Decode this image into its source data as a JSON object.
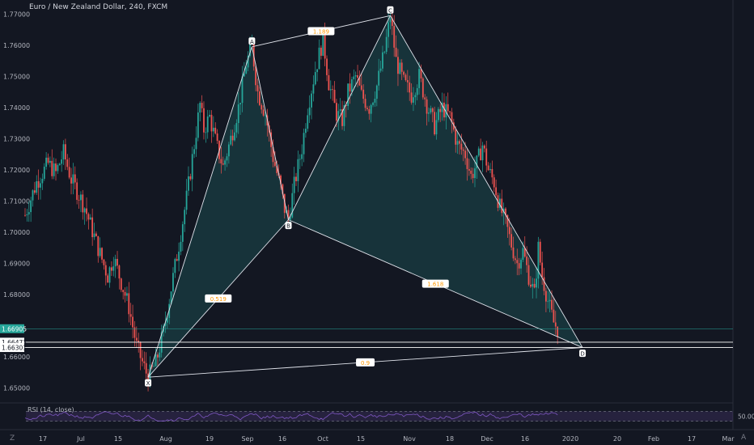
{
  "header": {
    "title": "Euro / New Zealand Dollar, 240, FXCM"
  },
  "chart_data": {
    "type": "candlestick",
    "symbol": "Euro / New Zealand Dollar",
    "interval": "240",
    "source": "FXCM",
    "y_ticks": [
      "1.77000",
      "1.76000",
      "1.75000",
      "1.74000",
      "1.73000",
      "1.72000",
      "1.71000",
      "1.70000",
      "1.69000",
      "1.68000",
      "1.66000",
      "1.65000"
    ],
    "ylim": [
      1.6455,
      1.7745
    ],
    "x_ticks": [
      "17",
      "Jul",
      "15",
      "Aug",
      "19",
      "Sep",
      "16",
      "Oct",
      "15",
      "Nov",
      "18",
      "Dec",
      "16",
      "2020",
      "20",
      "Feb",
      "17",
      "Mar"
    ],
    "price_markers": [
      {
        "label": "1.66905",
        "value": 1.66905,
        "color": "#26a69a"
      },
      {
        "label": "1.66473",
        "value": 1.66473,
        "color": "#ffffff"
      },
      {
        "label": "1.66301",
        "value": 1.66301,
        "color": "#ffffff"
      }
    ],
    "close_path": [
      [
        0,
        1.7055
      ],
      [
        6,
        1.716
      ],
      [
        12,
        1.722
      ],
      [
        16,
        1.719
      ],
      [
        20,
        1.7255
      ],
      [
        24,
        1.717
      ],
      [
        28,
        1.712
      ],
      [
        31,
        1.708
      ],
      [
        35,
        1.7005
      ],
      [
        39,
        1.693
      ],
      [
        43,
        1.686
      ],
      [
        46,
        1.692
      ],
      [
        50,
        1.684
      ],
      [
        54,
        1.676
      ],
      [
        58,
        1.6635
      ],
      [
        62,
        1.6565
      ],
      [
        64,
        1.6535
      ],
      [
        68,
        1.658
      ],
      [
        72,
        1.668
      ],
      [
        76,
        1.682
      ],
      [
        80,
        1.696
      ],
      [
        84,
        1.711
      ],
      [
        88,
        1.728
      ],
      [
        91,
        1.741
      ],
      [
        93,
        1.733
      ],
      [
        96,
        1.737
      ],
      [
        100,
        1.727
      ],
      [
        103,
        1.721
      ],
      [
        107,
        1.73
      ],
      [
        111,
        1.74
      ],
      [
        115,
        1.754
      ],
      [
        118,
        1.7595
      ],
      [
        121,
        1.745
      ],
      [
        125,
        1.738
      ],
      [
        129,
        1.724
      ],
      [
        133,
        1.714
      ],
      [
        135,
        1.7075
      ],
      [
        137,
        1.704
      ],
      [
        140,
        1.715
      ],
      [
        144,
        1.727
      ],
      [
        147,
        1.74
      ],
      [
        151,
        1.752
      ],
      [
        155,
        1.762
      ],
      [
        158,
        1.748
      ],
      [
        162,
        1.738
      ],
      [
        165,
        1.736
      ],
      [
        168,
        1.745
      ],
      [
        172,
        1.75
      ],
      [
        175,
        1.744
      ],
      [
        179,
        1.74
      ],
      [
        183,
        1.747
      ],
      [
        187,
        1.758
      ],
      [
        190,
        1.7695
      ],
      [
        193,
        1.755
      ],
      [
        197,
        1.748
      ],
      [
        201,
        1.744
      ],
      [
        205,
        1.75
      ],
      [
        209,
        1.741
      ],
      [
        213,
        1.734
      ],
      [
        217,
        1.74
      ],
      [
        221,
        1.737
      ],
      [
        225,
        1.728
      ],
      [
        229,
        1.725
      ],
      [
        232,
        1.718
      ],
      [
        235,
        1.722
      ],
      [
        238,
        1.728
      ],
      [
        241,
        1.72
      ],
      [
        244,
        1.716
      ],
      [
        247,
        1.708
      ],
      [
        250,
        1.703
      ],
      [
        253,
        1.696
      ],
      [
        256,
        1.69
      ],
      [
        259,
        1.694
      ],
      [
        262,
        1.686
      ],
      [
        265,
        1.68
      ],
      [
        267,
        1.695
      ],
      [
        269,
        1.686
      ],
      [
        272,
        1.678
      ],
      [
        275,
        1.671
      ],
      [
        278,
        1.668
      ]
    ],
    "harmonic_pattern": {
      "points": [
        {
          "label": "X",
          "t": 64,
          "price": 1.6535
        },
        {
          "label": "A",
          "t": 118,
          "price": 1.7595
        },
        {
          "label": "B",
          "t": 137,
          "price": 1.704
        },
        {
          "label": "C",
          "t": 190,
          "price": 1.7695
        },
        {
          "label": "D",
          "t": 290,
          "price": 1.663
        }
      ],
      "ratios": [
        {
          "label": "1.189",
          "between": [
            "A",
            "C"
          ]
        },
        {
          "label": "0.519",
          "between": [
            "X",
            "B"
          ]
        },
        {
          "label": "1.618",
          "between": [
            "B",
            "D"
          ]
        },
        {
          "label": "0.9",
          "between": [
            "X",
            "D"
          ]
        }
      ]
    },
    "rsi": {
      "label": "RSI (14, close)",
      "level_label": "50.00",
      "upper": 70,
      "lower": 30
    }
  },
  "colors": {
    "background": "#131722",
    "bull": "#26a69a",
    "bear": "#ef5350",
    "pattern_fill": "rgba(38,166,154,0.2)",
    "pattern_line": "#e0e3eb",
    "ratio_text": "#ff9800",
    "rsi_line": "#7e57c2",
    "rsi_band": "rgba(126,87,194,0.18)",
    "axis_text": "#b2b5be"
  },
  "ui": {
    "corner_icon": "Z",
    "axis_settings_icon": "A"
  }
}
